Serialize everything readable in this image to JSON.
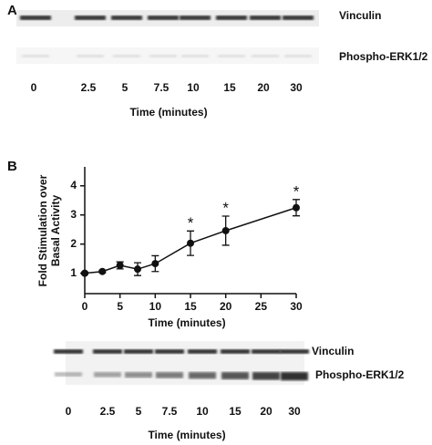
{
  "panel_a": {
    "label": "A",
    "blot_labels": [
      "Vinculin",
      "Phospho-ERK1/2"
    ],
    "lanes": [
      "0",
      "2.5",
      "5",
      "7.5",
      "10",
      "15",
      "20",
      "30"
    ],
    "x_label": "Time (minutes)"
  },
  "chart_data": {
    "type": "line",
    "panel_label": "B",
    "xlabel": "Time (minutes)",
    "ylabel": [
      "Fold Stimulation over",
      "Basal Activity"
    ],
    "x": [
      0,
      2.5,
      5,
      7.5,
      10,
      15,
      20,
      30
    ],
    "values": [
      1.0,
      1.06,
      1.27,
      1.14,
      1.33,
      2.03,
      2.46,
      3.25
    ],
    "errors": [
      0.04,
      0.04,
      0.12,
      0.22,
      0.27,
      0.42,
      0.5,
      0.28
    ],
    "color": "#111111",
    "xlim": [
      0,
      30
    ],
    "xticks": [
      0,
      5,
      10,
      15,
      20,
      25,
      30
    ],
    "ylim": [
      0.3,
      4.65
    ],
    "yticks": [
      1,
      2,
      3,
      4
    ],
    "annotations": [
      {
        "x": 15,
        "text": "*"
      },
      {
        "x": 20,
        "text": "*"
      },
      {
        "x": 30,
        "text": "*"
      }
    ]
  },
  "panel_b_blot": {
    "blot_labels": [
      "Vinculin",
      "Phospho-ERK1/2"
    ],
    "lanes": [
      "0",
      "2.5",
      "5",
      "7.5",
      "10",
      "15",
      "20",
      "30"
    ],
    "x_label": "Time (minutes)"
  }
}
